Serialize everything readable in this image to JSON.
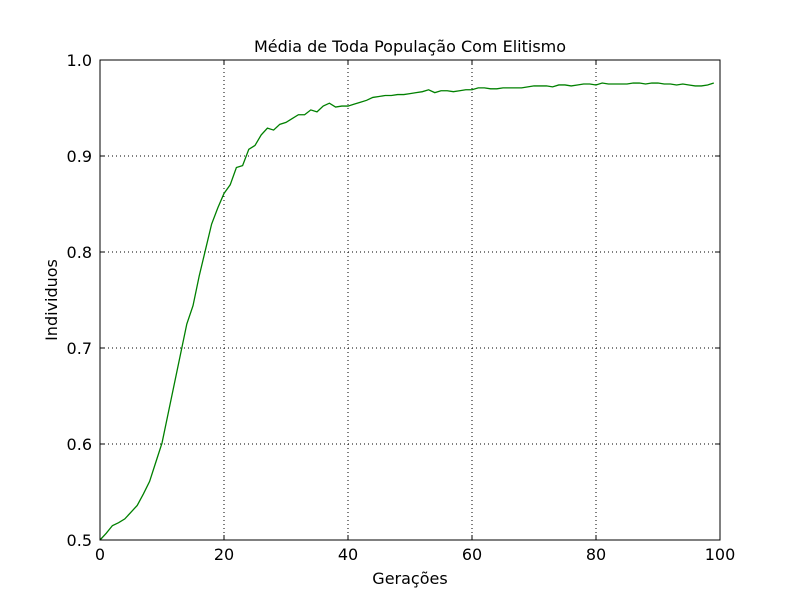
{
  "chart_data": {
    "type": "line",
    "title": "Média de Toda População Com Elitismo",
    "xlabel": "Gerações",
    "ylabel": "Individuos",
    "xlim": [
      0,
      100
    ],
    "ylim": [
      0.5,
      1.0
    ],
    "xticks": [
      0,
      20,
      40,
      60,
      80,
      100
    ],
    "yticks": [
      0.5,
      0.6,
      0.7,
      0.8,
      0.9,
      1.0
    ],
    "xtick_labels": [
      "0",
      "20",
      "40",
      "60",
      "80",
      "100"
    ],
    "ytick_labels": [
      "0.5",
      "0.6",
      "0.7",
      "0.8",
      "0.9",
      "1.0"
    ],
    "grid": true,
    "line_color": "#008000",
    "series": [
      {
        "x": [
          0,
          1,
          2,
          3,
          4,
          5,
          6,
          7,
          8,
          9,
          10,
          11,
          12,
          13,
          14,
          15,
          16,
          17,
          18,
          19,
          20,
          21,
          22,
          23,
          24,
          25,
          26,
          27,
          28,
          29,
          30,
          31,
          32,
          33,
          34,
          35,
          36,
          37,
          38,
          39,
          40,
          41,
          42,
          43,
          44,
          45,
          46,
          47,
          48,
          49,
          50,
          51,
          52,
          53,
          54,
          55,
          56,
          57,
          58,
          59,
          60,
          61,
          62,
          63,
          64,
          65,
          66,
          67,
          68,
          69,
          70,
          71,
          72,
          73,
          74,
          75,
          76,
          77,
          78,
          79,
          80,
          81,
          82,
          83,
          84,
          85,
          86,
          87,
          88,
          89,
          90,
          91,
          92,
          93,
          94,
          95,
          96,
          97,
          98,
          99
        ],
        "values": [
          0.5,
          0.507,
          0.515,
          0.518,
          0.522,
          0.529,
          0.536,
          0.548,
          0.561,
          0.581,
          0.601,
          0.632,
          0.663,
          0.694,
          0.725,
          0.744,
          0.775,
          0.802,
          0.829,
          0.846,
          0.861,
          0.87,
          0.888,
          0.89,
          0.907,
          0.911,
          0.922,
          0.929,
          0.927,
          0.933,
          0.935,
          0.939,
          0.943,
          0.943,
          0.948,
          0.946,
          0.952,
          0.955,
          0.951,
          0.952,
          0.952,
          0.954,
          0.956,
          0.958,
          0.961,
          0.962,
          0.963,
          0.963,
          0.964,
          0.964,
          0.965,
          0.966,
          0.967,
          0.969,
          0.966,
          0.968,
          0.968,
          0.967,
          0.968,
          0.969,
          0.969,
          0.971,
          0.971,
          0.97,
          0.97,
          0.971,
          0.971,
          0.971,
          0.971,
          0.972,
          0.973,
          0.973,
          0.973,
          0.972,
          0.974,
          0.974,
          0.973,
          0.974,
          0.975,
          0.975,
          0.974,
          0.976,
          0.975,
          0.975,
          0.975,
          0.975,
          0.976,
          0.976,
          0.975,
          0.976,
          0.976,
          0.975,
          0.975,
          0.974,
          0.975,
          0.974,
          0.973,
          0.973,
          0.974,
          0.976
        ]
      }
    ]
  }
}
